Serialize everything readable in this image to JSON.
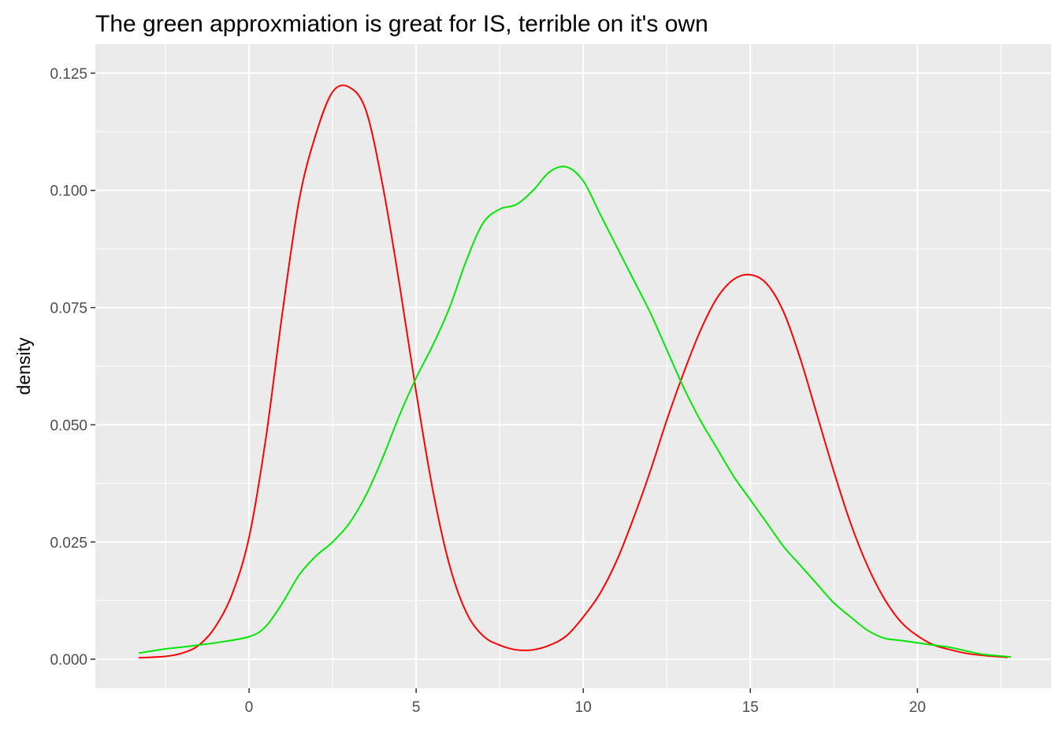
{
  "chart_data": {
    "type": "line",
    "title": "The green approxmiation is great for IS, terrible on it's own",
    "xlabel": "",
    "ylabel": "density",
    "xlim": [
      -4.6,
      24.0
    ],
    "ylim": [
      -0.0062,
      0.1312
    ],
    "x_ticks": [
      0,
      5,
      10,
      15,
      20
    ],
    "x_tick_labels": [
      "0",
      "5",
      "10",
      "15",
      "20"
    ],
    "y_ticks": [
      0.0,
      0.025,
      0.05,
      0.075,
      0.1,
      0.125
    ],
    "y_tick_labels": [
      "0.000",
      "0.025",
      "0.050",
      "0.075",
      "0.100",
      "0.125"
    ],
    "grid": true,
    "legend": "none",
    "background_color": "#ebebeb",
    "grid_color": "#ffffff",
    "series": [
      {
        "color": "#ff0000",
        "x": [
          -3.3,
          -2.5,
          -2.0,
          -1.5,
          -1.0,
          -0.5,
          0.0,
          0.5,
          1.0,
          1.5,
          2.0,
          2.5,
          3.0,
          3.5,
          4.0,
          4.5,
          5.0,
          5.5,
          6.0,
          6.5,
          7.0,
          7.5,
          8.0,
          8.5,
          9.0,
          9.5,
          10.0,
          10.5,
          11.0,
          11.5,
          12.0,
          12.5,
          13.0,
          13.5,
          14.0,
          14.5,
          15.0,
          15.5,
          16.0,
          16.5,
          17.0,
          17.5,
          18.0,
          18.5,
          19.0,
          19.5,
          20.0,
          20.5,
          21.0,
          21.5,
          22.0,
          22.7
        ],
        "y": [
          0.0003,
          0.0006,
          0.0013,
          0.003,
          0.007,
          0.014,
          0.026,
          0.047,
          0.074,
          0.098,
          0.112,
          0.121,
          0.122,
          0.117,
          0.101,
          0.08,
          0.057,
          0.036,
          0.02,
          0.01,
          0.005,
          0.003,
          0.002,
          0.002,
          0.003,
          0.005,
          0.009,
          0.014,
          0.021,
          0.03,
          0.04,
          0.051,
          0.061,
          0.07,
          0.077,
          0.081,
          0.082,
          0.08,
          0.074,
          0.064,
          0.052,
          0.04,
          0.029,
          0.02,
          0.013,
          0.008,
          0.005,
          0.003,
          0.002,
          0.0012,
          0.0008,
          0.0004
        ]
      },
      {
        "color": "#00e600",
        "x": [
          -3.3,
          -2.5,
          -2.0,
          -1.0,
          0.0,
          0.5,
          1.0,
          1.5,
          2.0,
          2.5,
          3.0,
          3.5,
          4.0,
          4.5,
          5.0,
          5.5,
          6.0,
          6.5,
          7.0,
          7.5,
          8.0,
          8.5,
          9.0,
          9.5,
          10.0,
          10.5,
          11.0,
          11.5,
          12.0,
          12.5,
          13.0,
          13.5,
          14.0,
          14.5,
          15.0,
          15.5,
          16.0,
          16.5,
          17.0,
          17.5,
          18.0,
          18.5,
          19.0,
          19.5,
          20.0,
          20.5,
          21.0,
          21.5,
          22.0,
          22.8
        ],
        "y": [
          0.0013,
          0.0022,
          0.0026,
          0.0035,
          0.0048,
          0.007,
          0.012,
          0.018,
          0.022,
          0.025,
          0.029,
          0.035,
          0.043,
          0.052,
          0.06,
          0.067,
          0.075,
          0.085,
          0.093,
          0.096,
          0.097,
          0.1,
          0.104,
          0.105,
          0.102,
          0.095,
          0.088,
          0.081,
          0.074,
          0.066,
          0.058,
          0.051,
          0.045,
          0.039,
          0.034,
          0.029,
          0.024,
          0.02,
          0.016,
          0.012,
          0.009,
          0.0062,
          0.0045,
          0.004,
          0.0035,
          0.003,
          0.0025,
          0.0017,
          0.001,
          0.0005
        ]
      }
    ]
  }
}
